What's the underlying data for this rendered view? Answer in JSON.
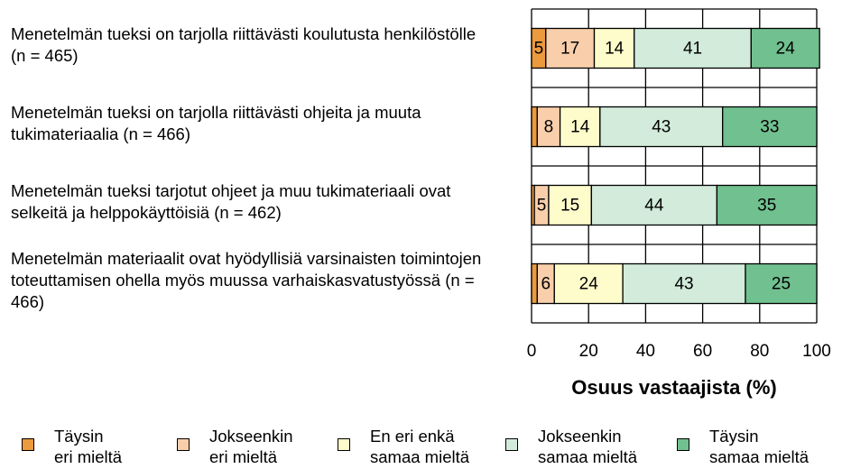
{
  "chart_data": {
    "type": "stacked_barh",
    "categories": [
      "Menetelmän tueksi on tarjolla riittävästi koulutusta henkilöstölle (n = 465)",
      "Menetelmän tueksi on tarjolla riittävästi ohjeita ja muuta tukimateriaalia (n = 466)",
      "Menetelmän tueksi tarjotut ohjeet ja muu tukimateriaali ovat selkeitä ja helppokäyttöisiä (n = 462)",
      "Menetelmän materiaalit ovat hyödyllisiä varsinaisten toimintojen toteuttamisen ohella myös muussa varhaiskasvatustyössä (n = 466)"
    ],
    "series": [
      {
        "name": "Täysin eri mieltä",
        "color": "#ec9a3e",
        "values": [
          5,
          2,
          1,
          2
        ]
      },
      {
        "name": "Jokseenkin eri mieltä",
        "color": "#f9cfab",
        "values": [
          17,
          8,
          5,
          6
        ]
      },
      {
        "name": "En eri enkä samaa mieltä",
        "color": "#fefcca",
        "values": [
          14,
          14,
          15,
          24
        ]
      },
      {
        "name": "Jokseenkin samaa mieltä",
        "color": "#d2ebda",
        "values": [
          41,
          43,
          44,
          43
        ]
      },
      {
        "name": "Täysin samaa mieltä",
        "color": "#71c08f",
        "values": [
          24,
          33,
          35,
          25
        ]
      }
    ],
    "xlabel": "Osuus vastaajista (%)",
    "xlim": [
      0,
      100
    ],
    "xticks": [
      0,
      20,
      40,
      60,
      80,
      100
    ],
    "grid": true,
    "legend": "bottom"
  }
}
